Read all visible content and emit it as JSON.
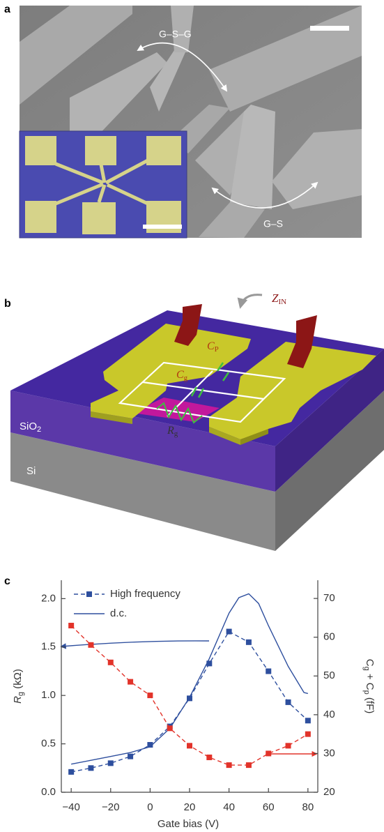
{
  "panel_a": {
    "label": "a",
    "annotations": [
      "G–S–G",
      "G–S"
    ]
  },
  "panel_b": {
    "label": "b",
    "z_in": {
      "main": "Z",
      "sub": "IN"
    },
    "c_p": {
      "main": "C",
      "sub": "P"
    },
    "c_g": {
      "main": "C",
      "sub": "g"
    },
    "r_g": {
      "main": "R",
      "sub": "g"
    },
    "sio2": {
      "main": "SiO",
      "sub": "2"
    },
    "si": "Si"
  },
  "chart_data": {
    "type": "line",
    "panel_label": "c",
    "x_label": "Gate bias (V)",
    "y_label": {
      "main": "R",
      "sub": "g",
      "unit": " (kΩ)"
    },
    "y2_label": {
      "c1": "C",
      "s1": "g",
      "plus": " + C",
      "s2": "p",
      "unit": " (fF)"
    },
    "xlim": [
      -45,
      85
    ],
    "xticks": [
      {
        "value": -40,
        "label": "−40"
      },
      {
        "value": -20,
        "label": "−20"
      },
      0,
      20,
      40,
      60,
      80
    ],
    "ylim": [
      0,
      2.19
    ],
    "yticks": [
      {
        "value": 0,
        "label": "0.0"
      },
      0.5,
      {
        "value": 1,
        "label": "1.0"
      },
      1.5,
      {
        "value": 2,
        "label": "2.0"
      }
    ],
    "y2lim": [
      20,
      74.7
    ],
    "y2ticks": [
      20,
      30,
      40,
      50,
      60,
      70
    ],
    "series": [
      {
        "name": "High frequency",
        "color": "#2e4f9e",
        "axis": "y",
        "dashed": true,
        "markers": true,
        "x": [
          -40,
          -30,
          -20,
          -10,
          0,
          10,
          20,
          30,
          40,
          50,
          60,
          70,
          80
        ],
        "values": [
          0.21,
          0.25,
          0.3,
          0.37,
          0.49,
          0.68,
          0.97,
          1.33,
          1.66,
          1.55,
          1.25,
          0.93,
          0.74
        ]
      },
      {
        "name": "d.c.",
        "color": "#2e4f9e",
        "axis": "y",
        "dashed": false,
        "markers": false,
        "x": [
          -40,
          -30,
          -20,
          -10,
          0,
          10,
          20,
          30,
          40,
          45,
          50,
          55,
          60,
          70,
          78,
          80
        ],
        "values": [
          0.29,
          0.33,
          0.37,
          0.41,
          0.47,
          0.66,
          0.98,
          1.38,
          1.85,
          2.01,
          2.05,
          1.95,
          1.72,
          1.3,
          1.03,
          1.02
        ]
      },
      {
        "color": "#e2332a",
        "axis": "y2",
        "dashed": true,
        "markers": true,
        "x": [
          -40,
          -30,
          -20,
          -10,
          0,
          10,
          20,
          30,
          40,
          50,
          60,
          70,
          80
        ],
        "values": [
          63,
          58,
          53.5,
          48.5,
          45,
          36.5,
          32,
          29,
          27,
          27,
          30,
          32,
          35
        ]
      }
    ]
  }
}
